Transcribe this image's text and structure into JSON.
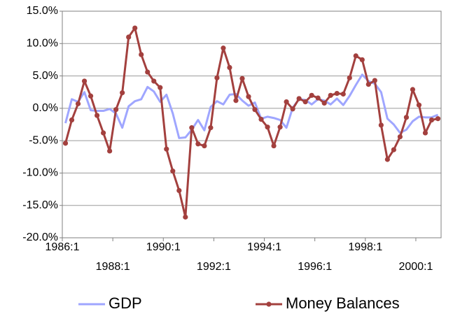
{
  "chart_data": {
    "type": "line",
    "categories": [
      "1986:1",
      null,
      null,
      null,
      null,
      null,
      null,
      null,
      "1988:1",
      null,
      null,
      null,
      null,
      null,
      null,
      null,
      "1990:1",
      null,
      null,
      null,
      null,
      null,
      null,
      null,
      "1992:1",
      null,
      null,
      null,
      null,
      null,
      null,
      null,
      "1994:1",
      null,
      null,
      null,
      null,
      null,
      null,
      null,
      "1996:1",
      null,
      null,
      null,
      null,
      null,
      null,
      null,
      "1998:1",
      null,
      null,
      null,
      null,
      null,
      null,
      null,
      "2000:1",
      null,
      null,
      null
    ],
    "series": [
      {
        "name": "GDP",
        "color": "#9fa6ff",
        "marker": false,
        "values": [
          -2.3,
          1.4,
          1.0,
          2.5,
          -0.3,
          -0.4,
          -0.4,
          -0.1,
          -0.8,
          -3.0,
          0.3,
          1.1,
          1.4,
          3.3,
          2.6,
          1.0,
          2.1,
          -0.8,
          -4.6,
          -4.5,
          -3.3,
          -1.8,
          -3.4,
          0.2,
          1.1,
          0.6,
          2.1,
          2.2,
          1.2,
          0.4,
          0.9,
          -1.6,
          -1.3,
          -1.5,
          -1.8,
          -3.0,
          0.1,
          1.4,
          1.3,
          0.6,
          1.4,
          1.2,
          0.6,
          1.5,
          0.5,
          1.9,
          3.6,
          5.2,
          4.2,
          3.8,
          2.5,
          -1.6,
          -2.5,
          -3.8,
          -3.3,
          -2.0,
          -1.3,
          -1.4,
          -1.4,
          -1.0
        ]
      },
      {
        "name": "Money Balances",
        "color": "#a3403e",
        "marker": true,
        "values": [
          -5.4,
          -1.8,
          0.7,
          4.2,
          1.9,
          -1.1,
          -3.8,
          -6.6,
          -0.2,
          2.4,
          11.0,
          12.4,
          8.3,
          5.6,
          4.2,
          3.2,
          -6.3,
          -9.7,
          -12.7,
          -16.8,
          -3.0,
          -5.5,
          -5.8,
          -3.0,
          4.7,
          9.3,
          6.3,
          1.2,
          4.6,
          1.8,
          -0.2,
          -1.7,
          -2.9,
          -5.8,
          -2.9,
          1.0,
          -0.1,
          1.5,
          1.0,
          2.0,
          1.6,
          0.8,
          2.0,
          2.3,
          2.2,
          4.7,
          8.1,
          7.5,
          3.7,
          4.3,
          -2.6,
          -7.9,
          -6.4,
          -4.4,
          -1.4,
          2.9,
          0.5,
          -3.8,
          -1.8,
          -1.6
        ]
      }
    ],
    "ylim": [
      -20,
      15
    ],
    "yticks": [
      {
        "value": -20,
        "label": "-20.0%"
      },
      {
        "value": -15,
        "label": "-15.0%"
      },
      {
        "value": -10,
        "label": "-10.0%"
      },
      {
        "value": -5,
        "label": "-5.0%"
      },
      {
        "value": 0,
        "label": "0.0%"
      },
      {
        "value": 5,
        "label": "5.0%"
      },
      {
        "value": 10,
        "label": "10.0%"
      },
      {
        "value": 15,
        "label": "15.0%"
      }
    ],
    "grid": true,
    "legend": "bottom"
  }
}
